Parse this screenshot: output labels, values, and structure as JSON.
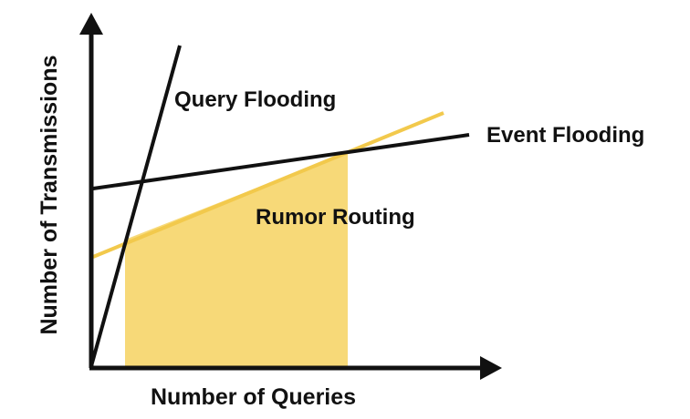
{
  "diagram": {
    "x_axis_label": "Number of Queries",
    "y_axis_label": "Number of Transmissions",
    "lines": {
      "query_flooding": "Query Flooding",
      "event_flooding": "Event Flooding",
      "rumor_routing": "Rumor Routing"
    },
    "colors": {
      "axis": "#111111",
      "line": "#111111",
      "rumor": "#f2c94c",
      "rumor_area": "#f7d978"
    }
  }
}
